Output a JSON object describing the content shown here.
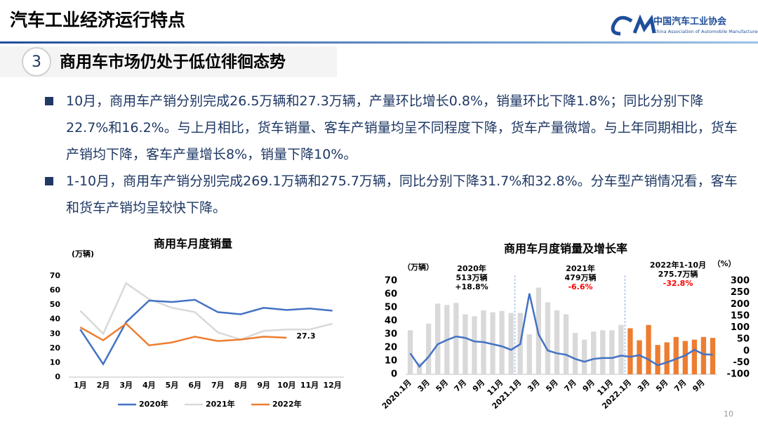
{
  "header": {
    "title": "汽车工业经济运行特点",
    "org_cn": "中国汽车工业协会",
    "org_en": "China Association of Automobile Manufacturers"
  },
  "section": {
    "number": "3",
    "title": "商用车市场仍处于低位徘徊态势"
  },
  "bullets": [
    "10月，商用车产销分别完成26.5万辆和27.3万辆，产量环比增长0.8%，销量环比下降1.8%；同比分别下降22.7%和16.2%。与上月相比，货车销量、客车产销量均呈不同程度下降，货车产量微增。与上年同期相比，货车产销均下降，客车产量增长8%，销量下降10%。",
    "1-10月，商用车产销分别完成269.1万辆和275.7万辆，同比分别下降31.7%和32.8%。分车型产销情况看，客车和货车产销均呈较快下降。"
  ],
  "page_number": "10",
  "chart_data": [
    {
      "type": "line",
      "title": "商用车月度销量",
      "y_label": "(万辆)",
      "categories": [
        "1月",
        "2月",
        "3月",
        "4月",
        "5月",
        "6月",
        "7月",
        "8月",
        "9月",
        "10月",
        "11月",
        "12月"
      ],
      "ylim": [
        0,
        70
      ],
      "yticks": [
        0,
        10,
        20,
        30,
        40,
        50,
        60,
        70
      ],
      "grid": false,
      "legend": "bottom",
      "series": [
        {
          "name": "2020年",
          "color": "#4472c4",
          "values": [
            33,
            9,
            38,
            53,
            52,
            53.5,
            45,
            43.5,
            48,
            46.5,
            47.5,
            46
          ]
        },
        {
          "name": "2021年",
          "color": "#d9d9d9",
          "values": [
            46,
            30,
            65,
            54,
            48,
            45,
            31,
            26,
            32,
            33,
            33,
            37
          ]
        },
        {
          "name": "2022年",
          "color": "#ed7d31",
          "values": [
            34.5,
            25.5,
            37,
            22,
            24,
            28,
            25,
            26,
            28,
            27.3,
            null,
            null
          ],
          "labeled_index": 9
        }
      ]
    },
    {
      "type": "combo",
      "title": "商用车月度销量及增长率",
      "y_label": "（万辆）",
      "y2_label": "（%）",
      "categories": [
        "2020.1月",
        null,
        "3月",
        null,
        "5月",
        null,
        "7月",
        null,
        "9月",
        null,
        "11月",
        null,
        "2021.1月",
        null,
        "3月",
        null,
        "5月",
        null,
        "7月",
        null,
        "9月",
        null,
        "11月",
        null,
        "2022.1月",
        null,
        "3月",
        null,
        "5月",
        null,
        "7月",
        null,
        "9月",
        null
      ],
      "ylim": [
        0,
        70
      ],
      "yticks": [
        0,
        10,
        20,
        30,
        40,
        50,
        60,
        70
      ],
      "y2lim": [
        -100,
        300
      ],
      "y2ticks": [
        -100,
        -50,
        0,
        50,
        100,
        150,
        200,
        250,
        300
      ],
      "series": [
        {
          "type": "bar",
          "color": "#d9d9d9",
          "values": [
            33,
            9,
            38,
            53,
            52,
            53.5,
            45,
            43.5,
            48,
            46.5,
            47.5,
            46,
            46,
            30,
            65,
            54,
            48,
            45,
            31,
            26,
            32,
            33,
            33,
            37,
            null,
            null,
            null,
            null,
            null,
            null,
            null,
            null,
            null,
            null
          ]
        },
        {
          "type": "bar",
          "color": "#ed7d31",
          "values": [
            null,
            null,
            null,
            null,
            null,
            null,
            null,
            null,
            null,
            null,
            null,
            null,
            null,
            null,
            null,
            null,
            null,
            null,
            null,
            null,
            null,
            null,
            null,
            null,
            34.5,
            25.5,
            37,
            22,
            24,
            28,
            25,
            26,
            28,
            27.3
          ]
        },
        {
          "type": "line",
          "axis": "y2",
          "color": "#4472c4",
          "values": [
            -10,
            -67,
            -25,
            29,
            47,
            62,
            56,
            41,
            38,
            29,
            20,
            5,
            29,
            246,
            71,
            2,
            -10,
            -16,
            -34,
            -46,
            -34,
            -30,
            -30,
            -20,
            -25,
            -18,
            -37,
            -61,
            -49,
            -34,
            -19,
            5,
            -14,
            -16
          ]
        }
      ],
      "annotations": [
        {
          "lines": [
            "2020年",
            "513万辆",
            "+18.8%"
          ],
          "change_color": "#000000"
        },
        {
          "lines": [
            "2021年",
            "479万辆",
            "-6.6%"
          ],
          "change_color": "#ff0000"
        },
        {
          "lines": [
            "2022年1-10月",
            "275.7万辆",
            "-32.8%"
          ],
          "change_color": "#ff0000"
        }
      ]
    }
  ]
}
